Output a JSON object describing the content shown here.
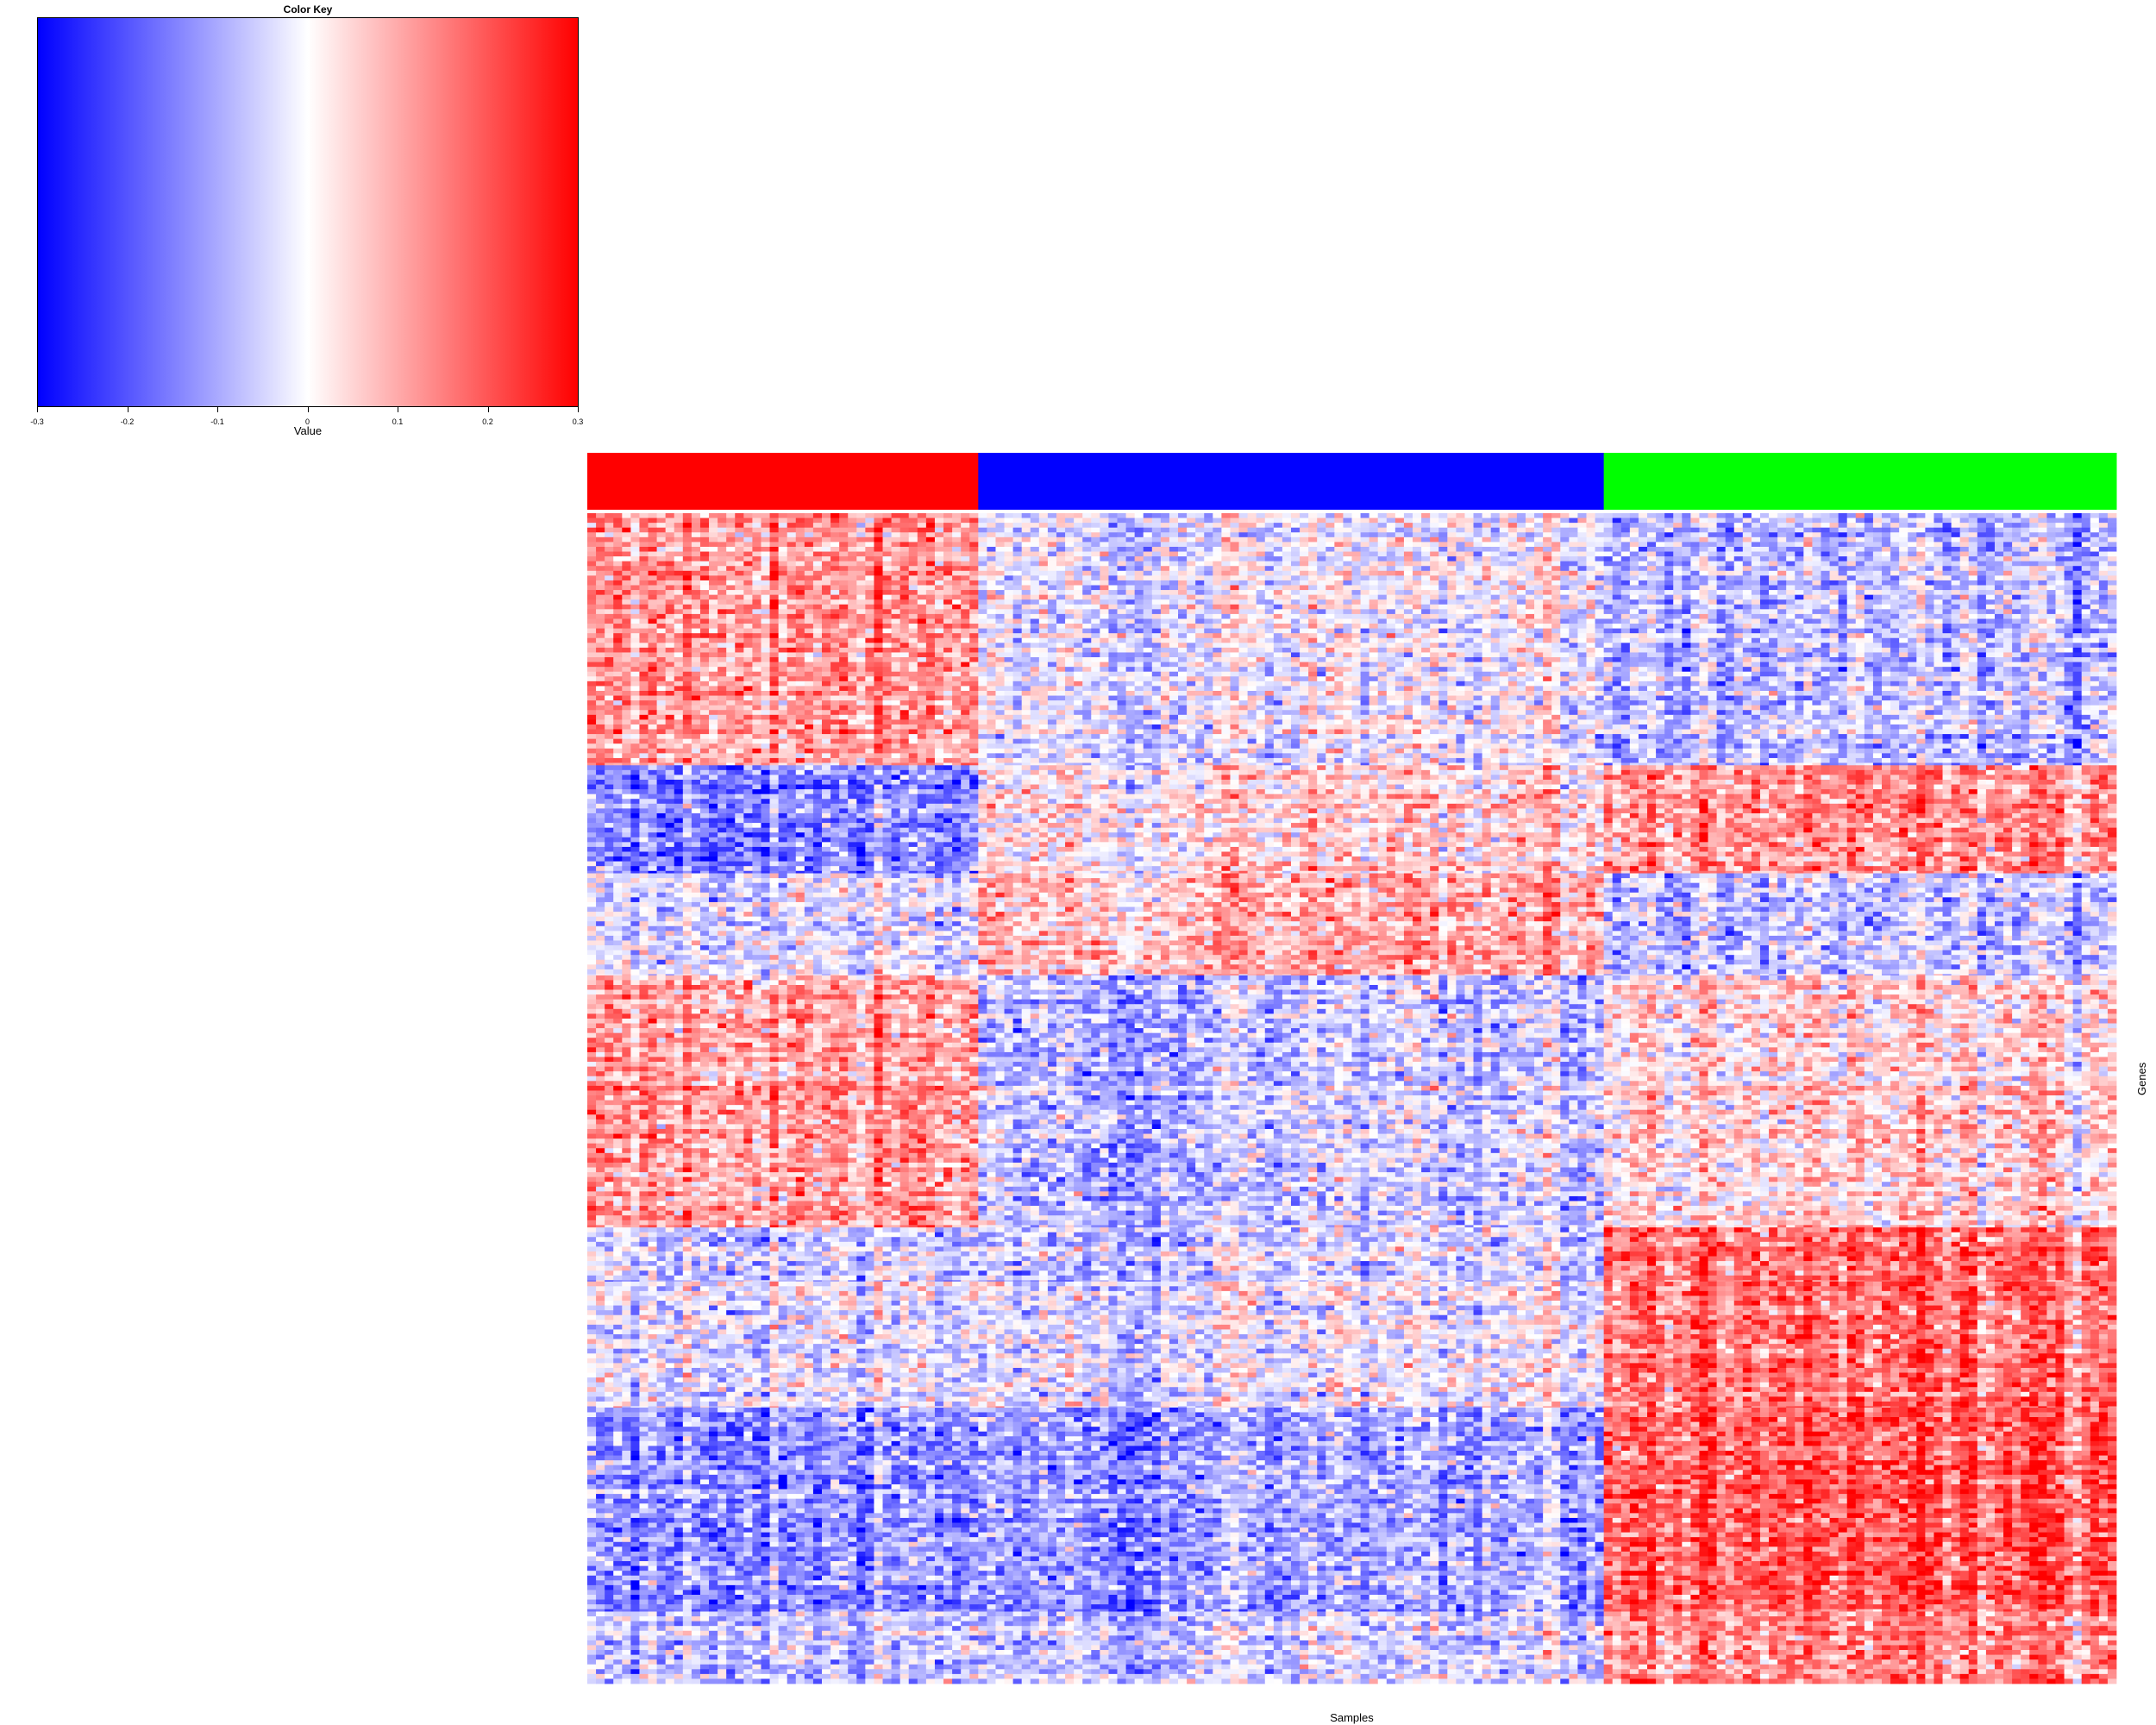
{
  "chart_data": {
    "type": "heatmap",
    "xlabel": "Samples",
    "ylabel": "Genes",
    "color_key": {
      "title": "Color Key",
      "xlabel": "Value",
      "range": [
        -0.3,
        0.3
      ],
      "ticks": [
        "-0.3",
        "-0.2",
        "-0.1",
        "0",
        "0.1",
        "0.2",
        "0.3"
      ],
      "tick_values": [
        -0.3,
        -0.2,
        -0.1,
        0,
        0.1,
        0.2,
        0.3
      ],
      "colors": {
        "low": "#0000ff",
        "mid": "#ffffff",
        "high": "#ff0000"
      }
    },
    "sample_groups": [
      {
        "color": "#ff0000",
        "n_samples": 45
      },
      {
        "color": "#0000ff",
        "n_samples": 72
      },
      {
        "color": "#00ff00",
        "n_samples": 59
      }
    ],
    "gene_blocks": [
      {
        "n_genes": 210,
        "group_means": [
          0.12,
          -0.02,
          -0.08
        ]
      },
      {
        "n_genes": 90,
        "group_means": [
          -0.14,
          0.04,
          0.13
        ]
      },
      {
        "n_genes": 85,
        "group_means": [
          -0.03,
          0.09,
          -0.07
        ]
      },
      {
        "n_genes": 210,
        "group_means": [
          0.11,
          -0.07,
          0.04
        ]
      },
      {
        "n_genes": 45,
        "group_means": [
          -0.05,
          -0.05,
          0.17
        ]
      },
      {
        "n_genes": 105,
        "group_means": [
          -0.03,
          -0.02,
          0.16
        ]
      },
      {
        "n_genes": 170,
        "group_means": [
          -0.13,
          -0.11,
          0.19
        ]
      },
      {
        "n_genes": 60,
        "group_means": [
          -0.06,
          -0.05,
          0.14
        ]
      }
    ]
  }
}
